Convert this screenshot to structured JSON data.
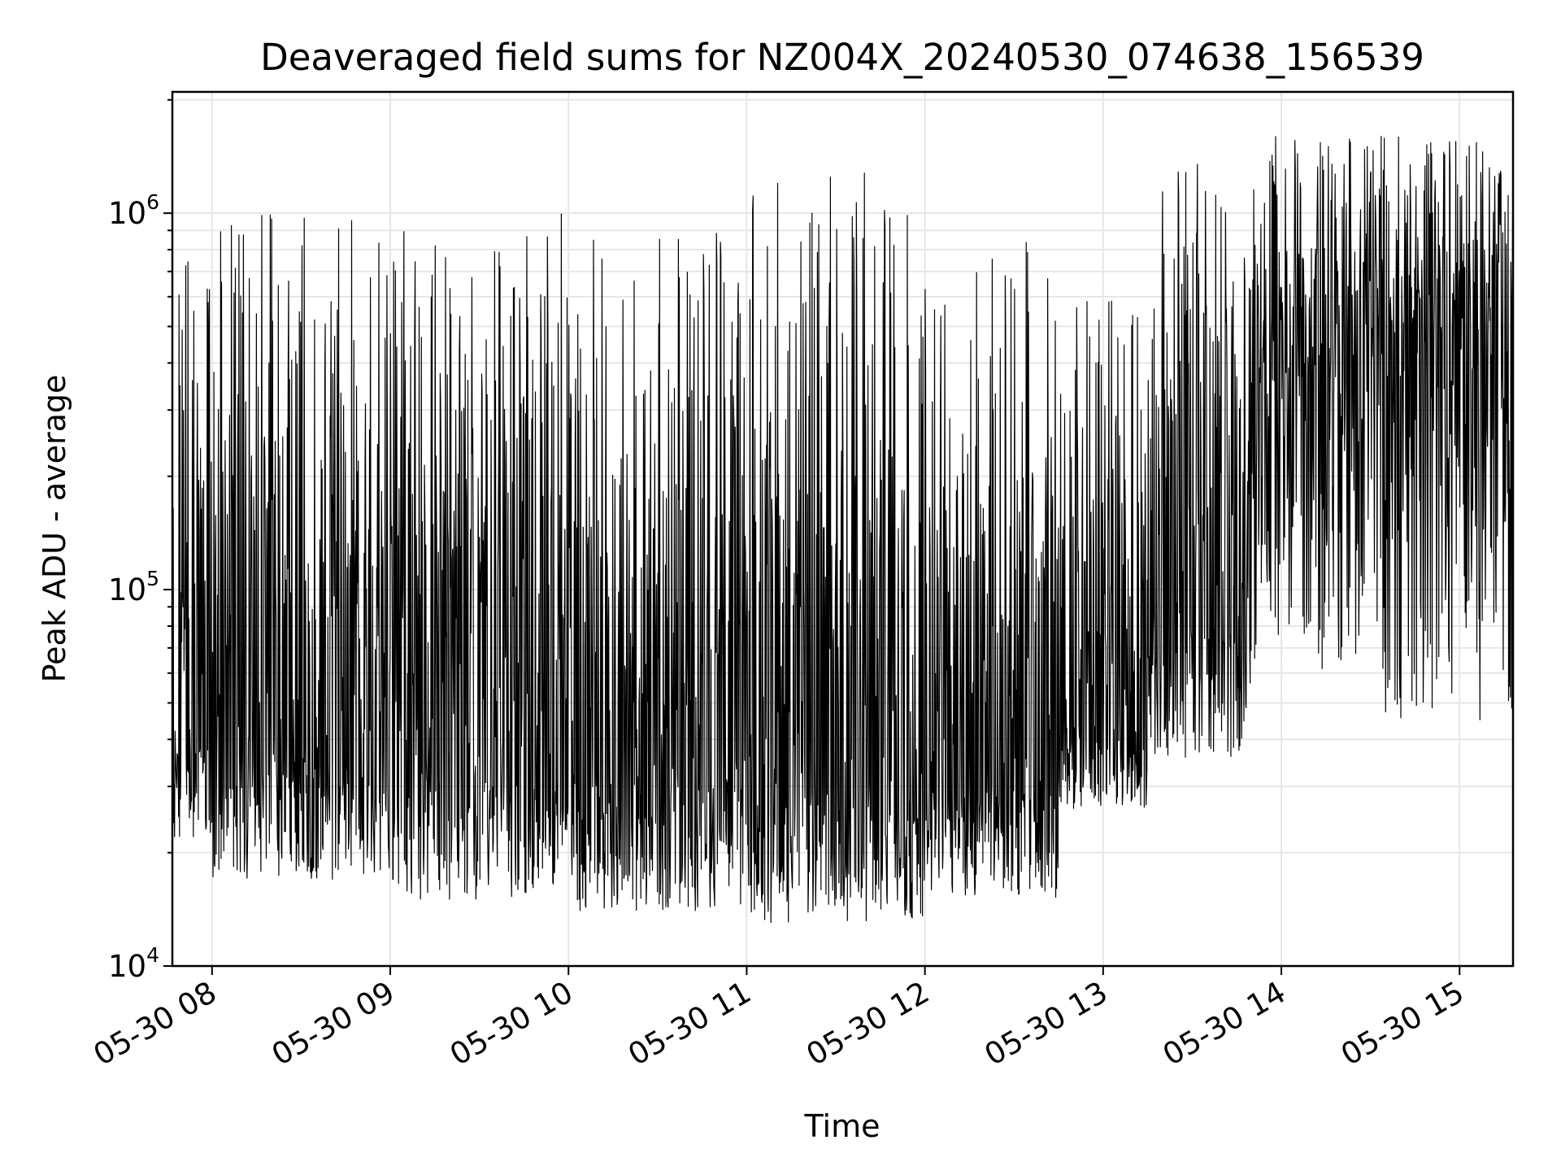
{
  "chart_data": {
    "type": "line",
    "title": "Deaveraged field sums for NZ004X_20240530_074638_156539",
    "xlabel": "Time",
    "ylabel": "Peak ADU - average",
    "yscale": "log",
    "ylim": [
      10000,
      2100000
    ],
    "xlim": [
      "2024-05-30 07:46:38",
      "2024-05-30 15:18:00"
    ],
    "grid": true,
    "x_tick_labels": [
      "05-30 08",
      "05-30 09",
      "05-30 10",
      "05-30 11",
      "05-30 12",
      "05-30 13",
      "05-30 14",
      "05-30 15"
    ],
    "y_tick_labels": [
      {
        "base": "10",
        "exponent": "4"
      },
      {
        "base": "10",
        "exponent": "5"
      },
      {
        "base": "10",
        "exponent": "6"
      }
    ],
    "series": [
      {
        "color": "#000000",
        "segments": [
          {
            "start": "2024-05-30 07:46:38",
            "end": "2024-05-30 08:00",
            "low": 22000,
            "base": 40000,
            "high": 800000
          },
          {
            "start": "2024-05-30 08:00",
            "end": "2024-05-30 09:00",
            "low": 17000,
            "base": 36000,
            "high": 1000000
          },
          {
            "start": "2024-05-30 09:00",
            "end": "2024-05-30 10:00",
            "low": 15000,
            "base": 33000,
            "high": 1000000
          },
          {
            "start": "2024-05-30 10:00",
            "end": "2024-05-30 11:00",
            "low": 14000,
            "base": 31000,
            "high": 900000
          },
          {
            "start": "2024-05-30 11:00",
            "end": "2024-05-30 12:00",
            "low": 13000,
            "base": 27000,
            "high": 1400000
          },
          {
            "start": "2024-05-30 12:00",
            "end": "2024-05-30 12:45",
            "low": 15000,
            "base": 30000,
            "high": 850000
          },
          {
            "start": "2024-05-30 12:45",
            "end": "2024-05-30 13:15",
            "low": 26000,
            "base": 45000,
            "high": 650000
          },
          {
            "start": "2024-05-30 13:15",
            "end": "2024-05-30 13:50",
            "low": 35000,
            "base": 80000,
            "high": 1500000
          },
          {
            "start": "2024-05-30 13:50",
            "end": "2024-05-30 14:30",
            "low": 60000,
            "base": 350000,
            "high": 1600000
          },
          {
            "start": "2024-05-30 14:30",
            "end": "2024-05-30 15:18",
            "low": 45000,
            "base": 420000,
            "high": 1600000
          }
        ]
      }
    ]
  }
}
